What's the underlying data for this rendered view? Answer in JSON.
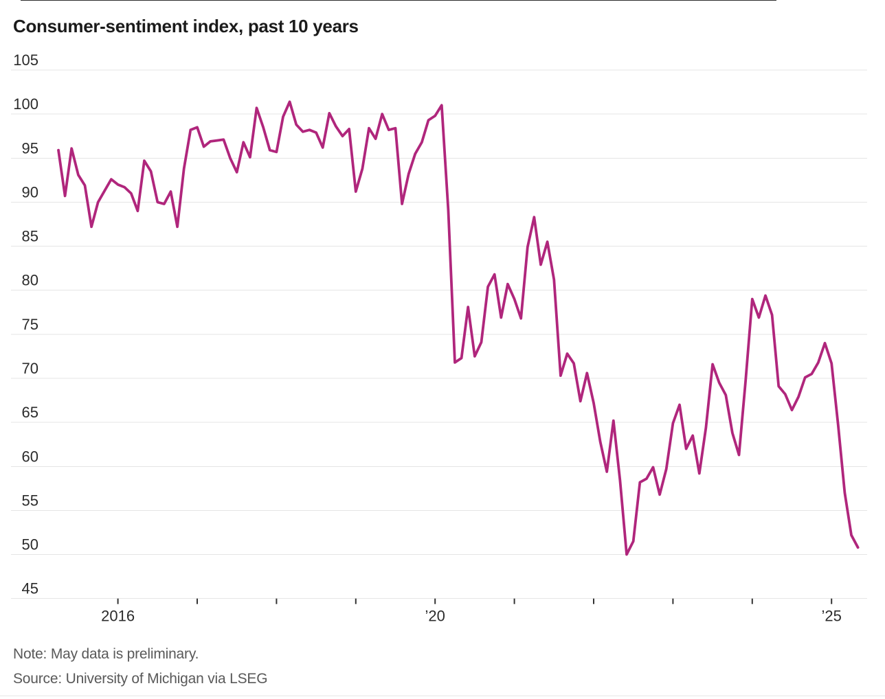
{
  "title": "Consumer-sentiment index, past 10 years",
  "note": "Note: May data is preliminary.",
  "source": "Source: University of Michigan via LSEG",
  "colors": {
    "line": "#b0267c",
    "grid": "#e5e5e5",
    "axis_text": "#2b2b2b",
    "tick": "#333333",
    "muted_text": "#595959"
  },
  "chart_data": {
    "type": "line",
    "title": "Consumer-sentiment index, past 10 years",
    "frequency": "monthly",
    "x_start_month": "2015-04",
    "x_end_month": "2025-05",
    "ylim": [
      45,
      105
    ],
    "y_ticks": [
      45,
      50,
      55,
      60,
      65,
      70,
      75,
      80,
      85,
      90,
      95,
      100,
      105
    ],
    "x_ticks": [
      {
        "year": 2016,
        "label": "2016"
      },
      {
        "year": 2017,
        "label": ""
      },
      {
        "year": 2018,
        "label": ""
      },
      {
        "year": 2019,
        "label": ""
      },
      {
        "year": 2020,
        "label": "’20"
      },
      {
        "year": 2021,
        "label": ""
      },
      {
        "year": 2022,
        "label": ""
      },
      {
        "year": 2023,
        "label": ""
      },
      {
        "year": 2024,
        "label": ""
      },
      {
        "year": 2025,
        "label": "’25"
      }
    ],
    "grid": "horizontal",
    "legend": "none",
    "series": [
      {
        "name": "Consumer-sentiment index",
        "values": [
          95.9,
          90.7,
          96.1,
          93.1,
          91.9,
          87.2,
          90.0,
          91.3,
          92.6,
          92.0,
          91.7,
          91.0,
          89.0,
          94.7,
          93.5,
          90.0,
          89.8,
          91.2,
          87.2,
          93.8,
          98.2,
          98.5,
          96.3,
          96.9,
          97.0,
          97.1,
          95.0,
          93.4,
          96.8,
          95.1,
          100.7,
          98.5,
          95.9,
          95.7,
          99.7,
          101.4,
          98.8,
          98.0,
          98.2,
          97.9,
          96.2,
          100.1,
          98.6,
          97.5,
          98.3,
          91.2,
          93.8,
          98.4,
          97.2,
          100.0,
          98.2,
          98.4,
          89.8,
          93.2,
          95.5,
          96.8,
          99.3,
          99.8,
          101.0,
          89.1,
          71.8,
          72.3,
          78.1,
          72.5,
          74.1,
          80.4,
          81.8,
          76.9,
          80.7,
          79.0,
          76.8,
          84.9,
          88.3,
          82.9,
          85.5,
          81.2,
          70.3,
          72.8,
          71.7,
          67.4,
          70.6,
          67.2,
          62.8,
          59.4,
          65.2,
          58.4,
          50.0,
          51.5,
          58.2,
          58.6,
          59.9,
          56.8,
          59.7,
          64.9,
          67.0,
          62.0,
          63.5,
          59.2,
          64.4,
          71.6,
          69.5,
          68.1,
          63.8,
          61.3,
          69.7,
          79.0,
          76.9,
          79.4,
          77.2,
          69.1,
          68.2,
          66.4,
          67.9,
          70.1,
          70.5,
          71.8,
          74.0,
          71.7,
          64.7,
          57.0,
          52.2,
          50.8
        ]
      }
    ]
  }
}
